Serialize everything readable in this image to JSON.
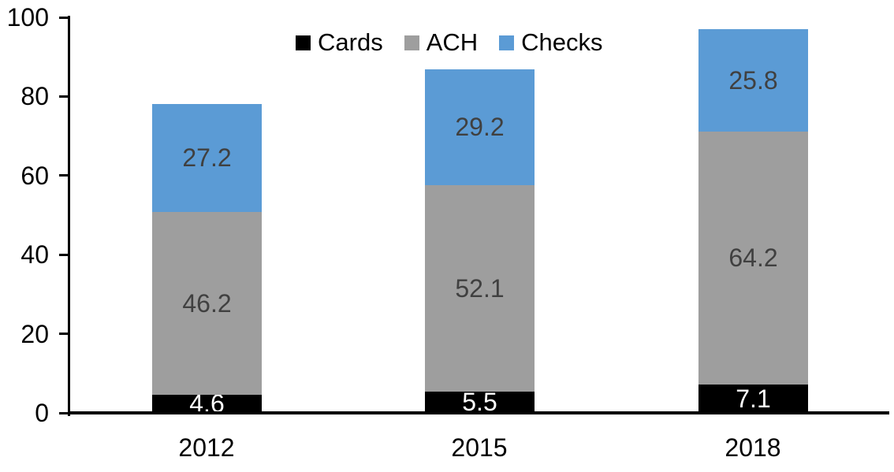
{
  "chart_data": {
    "type": "bar",
    "stacked": true,
    "title": "",
    "xlabel": "",
    "ylabel": "",
    "categories": [
      "2012",
      "2015",
      "2018"
    ],
    "series": [
      {
        "name": "Cards",
        "color": "#000000",
        "label_color": "#ffffff",
        "values": [
          4.6,
          5.5,
          7.1
        ]
      },
      {
        "name": "ACH",
        "color": "#9E9E9E",
        "label_color": "#404040",
        "values": [
          46.2,
          52.1,
          64.2
        ]
      },
      {
        "name": "Checks",
        "color": "#5B9BD5",
        "label_color": "#404040",
        "values": [
          27.2,
          29.2,
          25.8
        ]
      }
    ],
    "totals": [
      78.0,
      86.8,
      97.1
    ],
    "ylim": [
      0,
      100
    ],
    "yticks": [
      0,
      20,
      40,
      60,
      80,
      100
    ],
    "grid": false,
    "legend_position": "top",
    "axis_color": "#000000",
    "background_color": "#ffffff"
  }
}
